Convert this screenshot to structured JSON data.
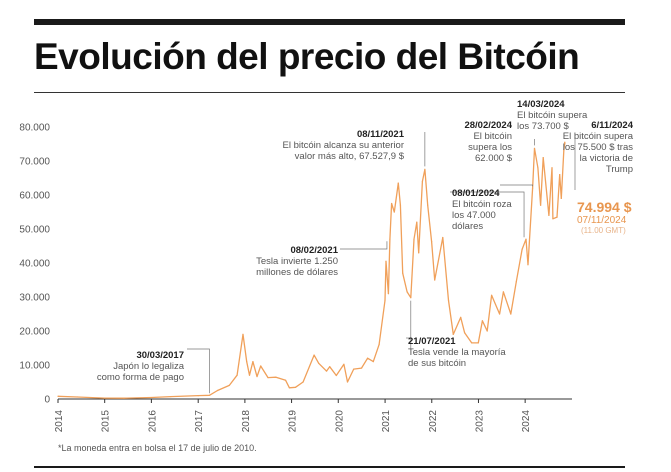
{
  "title": "Evolución del precio del Bitcóin",
  "footnote": "*La moneda entra en bolsa el 17 de julio de 2010.",
  "colors": {
    "line": "#f0a05a",
    "highlight": "#e8964f",
    "text": "#222222",
    "muted": "#555555",
    "axis": "#333333"
  },
  "chart_data": {
    "type": "line",
    "title": "",
    "xlabel": "",
    "ylabel": "",
    "grid": false,
    "ylim": [
      0,
      80000
    ],
    "xlim": [
      "2014-01-01",
      "2024-12-01"
    ],
    "y_ticks": [
      "0",
      "10.000",
      "20.000",
      "30.000",
      "40.000",
      "50.000",
      "60.000",
      "70.000",
      "80.000"
    ],
    "x_ticks": [
      "2014",
      "2015",
      "2016",
      "2017",
      "2018",
      "2019",
      "2020",
      "2021",
      "2022",
      "2023",
      "2024"
    ],
    "series": [
      {
        "x": [
          "2014-01-01",
          "2014-06-01",
          "2015-01-01",
          "2015-06-01",
          "2016-01-01",
          "2016-06-01",
          "2017-01-01",
          "2017-03-30",
          "2017-06-01",
          "2017-09-01",
          "2017-11-01",
          "2017-12-17",
          "2018-01-15",
          "2018-02-06",
          "2018-03-05",
          "2018-04-06",
          "2018-05-05",
          "2018-07-01",
          "2018-09-01",
          "2018-11-15",
          "2018-12-15",
          "2019-02-01",
          "2019-04-01",
          "2019-06-26",
          "2019-08-01",
          "2019-10-01",
          "2019-10-26",
          "2019-12-17",
          "2020-02-14",
          "2020-03-13",
          "2020-05-01",
          "2020-07-01",
          "2020-08-17",
          "2020-10-01",
          "2020-11-15",
          "2020-12-31",
          "2021-01-08",
          "2021-01-27",
          "2021-02-08",
          "2021-02-21",
          "2021-03-14",
          "2021-04-14",
          "2021-05-01",
          "2021-05-19",
          "2021-06-22",
          "2021-07-21",
          "2021-08-15",
          "2021-09-06",
          "2021-09-21",
          "2021-10-20",
          "2021-11-08",
          "2021-11-30",
          "2021-12-31",
          "2022-01-24",
          "2022-03-28",
          "2022-05-12",
          "2022-06-18",
          "2022-08-15",
          "2022-09-15",
          "2022-11-09",
          "2022-12-31",
          "2023-02-01",
          "2023-03-10",
          "2023-04-14",
          "2023-06-15",
          "2023-07-15",
          "2023-09-11",
          "2023-10-24",
          "2023-12-08",
          "2024-01-08",
          "2024-01-23",
          "2024-02-28",
          "2024-03-14",
          "2024-04-10",
          "2024-05-01",
          "2024-05-21",
          "2024-07-05",
          "2024-07-29",
          "2024-08-05",
          "2024-09-06",
          "2024-09-27",
          "2024-10-10",
          "2024-10-29",
          "2024-11-06",
          "2024-11-07"
        ],
        "y": [
          800,
          600,
          260,
          240,
          430,
          700,
          1000,
          1100,
          2500,
          4000,
          7000,
          19000,
          11000,
          7000,
          11000,
          6600,
          9700,
          6300,
          6400,
          5500,
          3300,
          3450,
          5000,
          12900,
          10500,
          8200,
          9500,
          6900,
          10200,
          5000,
          8800,
          9100,
          12000,
          11000,
          16000,
          29000,
          40500,
          31000,
          47000,
          57500,
          55000,
          63500,
          57000,
          37000,
          31500,
          29800,
          47000,
          52000,
          43000,
          64000,
          67527,
          57000,
          46300,
          35000,
          47500,
          29000,
          19000,
          24000,
          19500,
          16500,
          16500,
          23000,
          20000,
          30500,
          25000,
          31500,
          25000,
          34500,
          44000,
          47000,
          39500,
          62000,
          73700,
          68000,
          57000,
          71000,
          54000,
          68000,
          53000,
          53500,
          66000,
          59000,
          73000,
          75500,
          74994
        ]
      }
    ],
    "highlight": {
      "value_label": "74.994 $",
      "date_label": "07/11/2024",
      "time_label": "(11.00 GMT)"
    },
    "annotations": [
      {
        "x": "2017-03-30",
        "y": 1100,
        "date": "30/03/2017",
        "text": [
          "Japón lo legaliza",
          "como forma de pago"
        ]
      },
      {
        "x": "2021-02-08",
        "y": 47000,
        "date": "08/02/2021",
        "text": [
          "Tesla invierte 1.250",
          "millones de dólares"
        ]
      },
      {
        "x": "2021-07-21",
        "y": 29800,
        "date": "21/07/2021",
        "text": [
          "Tesla vende la mayoría",
          "de sus bitcóin"
        ]
      },
      {
        "x": "2021-11-08",
        "y": 67527,
        "date": "08/11/2021",
        "text": [
          "El bitcóin alcanza su anterior",
          "valor más alto, 67.527,9 $"
        ]
      },
      {
        "x": "2024-01-08",
        "y": 47000,
        "date": "08/01/2024",
        "text": [
          "El bitcóin roza",
          "los 47.000",
          "dólares"
        ]
      },
      {
        "x": "2024-02-28",
        "y": 62000,
        "date": "28/02/2024",
        "text": [
          "El bitcóin",
          "supera los",
          "62.000 $"
        ]
      },
      {
        "x": "2024-03-14",
        "y": 73700,
        "date": "14/03/2024",
        "text": [
          "El bitcóin supera",
          "los 73.700 $"
        ]
      },
      {
        "x": "2024-11-06",
        "y": 75500,
        "date": "6/11/2024",
        "text": [
          "El bitcóin supera",
          "los 75.500 $ tras",
          "la victoria de",
          "Trump"
        ]
      }
    ]
  }
}
